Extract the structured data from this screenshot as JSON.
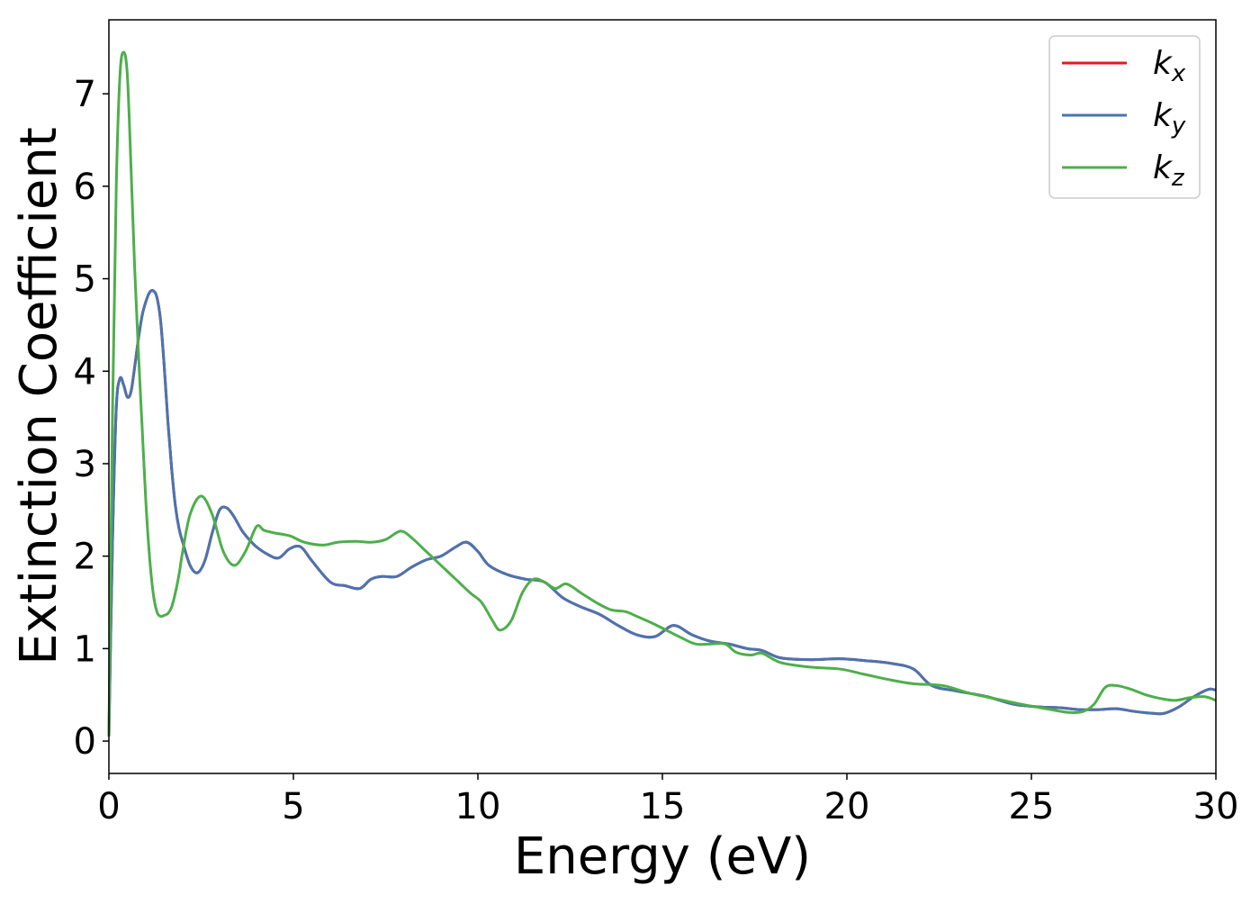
{
  "chart_data": {
    "type": "line",
    "title": "",
    "xlabel": "Energy (eV)",
    "ylabel": "Extinction Coefficient",
    "xlim": [
      0,
      30
    ],
    "ylim": [
      -0.35,
      7.8
    ],
    "xticks": [
      0,
      5,
      10,
      15,
      20,
      25,
      30
    ],
    "yticks": [
      0,
      1,
      2,
      3,
      4,
      5,
      6,
      7
    ],
    "xtick_labels": [
      "0",
      "5",
      "10",
      "15",
      "20",
      "25",
      "30"
    ],
    "ytick_labels": [
      "0",
      "1",
      "2",
      "3",
      "4",
      "5",
      "6",
      "7"
    ],
    "grid": false,
    "legend_position": "top-right",
    "series": [
      {
        "name": "k_x",
        "label_base": "k",
        "label_sub": "x",
        "color": "#e41a1c",
        "x": [
          0,
          0.1,
          0.2,
          0.3,
          0.4,
          0.5,
          0.6,
          0.7,
          0.8,
          0.9,
          1.0,
          1.1,
          1.2,
          1.3,
          1.4,
          1.5,
          1.6,
          1.7,
          1.8,
          1.9,
          2.0,
          2.2,
          2.4,
          2.6,
          2.8,
          3.0,
          3.2,
          3.4,
          3.6,
          3.8,
          4.0,
          4.3,
          4.6,
          4.9,
          5.2,
          5.5,
          6.0,
          6.4,
          6.8,
          7.1,
          7.4,
          7.8,
          8.2,
          8.6,
          9.0,
          9.4,
          9.7,
          10.0,
          10.3,
          10.8,
          11.3,
          11.8,
          12.3,
          12.8,
          13.3,
          13.8,
          14.3,
          14.8,
          15.3,
          15.8,
          16.3,
          16.8,
          17.3,
          17.7,
          18.2,
          19.0,
          19.8,
          20.5,
          21.2,
          21.8,
          22.3,
          23.0,
          23.8,
          24.5,
          25.2,
          25.8,
          26.3,
          26.8,
          27.3,
          27.8,
          28.3,
          28.6,
          29.0,
          29.4,
          29.8,
          30.0
        ],
        "y": [
          0.05,
          2.2,
          3.6,
          3.92,
          3.85,
          3.72,
          3.78,
          4.05,
          4.35,
          4.6,
          4.75,
          4.85,
          4.87,
          4.8,
          4.55,
          4.05,
          3.45,
          2.95,
          2.55,
          2.3,
          2.15,
          1.9,
          1.82,
          1.95,
          2.25,
          2.5,
          2.52,
          2.42,
          2.28,
          2.18,
          2.1,
          2.02,
          1.98,
          2.08,
          2.1,
          1.95,
          1.72,
          1.68,
          1.65,
          1.75,
          1.78,
          1.78,
          1.88,
          1.96,
          2.0,
          2.1,
          2.15,
          2.05,
          1.9,
          1.8,
          1.75,
          1.72,
          1.55,
          1.45,
          1.37,
          1.25,
          1.15,
          1.13,
          1.25,
          1.15,
          1.08,
          1.05,
          1.0,
          0.98,
          0.9,
          0.88,
          0.89,
          0.87,
          0.84,
          0.78,
          0.6,
          0.54,
          0.48,
          0.4,
          0.37,
          0.36,
          0.34,
          0.34,
          0.35,
          0.32,
          0.3,
          0.3,
          0.37,
          0.48,
          0.56,
          0.55
        ]
      },
      {
        "name": "k_y",
        "label_base": "k",
        "label_sub": "y",
        "color": "#4a74b0",
        "x": [
          0,
          0.1,
          0.2,
          0.3,
          0.4,
          0.5,
          0.6,
          0.7,
          0.8,
          0.9,
          1.0,
          1.1,
          1.2,
          1.3,
          1.4,
          1.5,
          1.6,
          1.7,
          1.8,
          1.9,
          2.0,
          2.2,
          2.4,
          2.6,
          2.8,
          3.0,
          3.2,
          3.4,
          3.6,
          3.8,
          4.0,
          4.3,
          4.6,
          4.9,
          5.2,
          5.5,
          6.0,
          6.4,
          6.8,
          7.1,
          7.4,
          7.8,
          8.2,
          8.6,
          9.0,
          9.4,
          9.7,
          10.0,
          10.3,
          10.8,
          11.3,
          11.8,
          12.3,
          12.8,
          13.3,
          13.8,
          14.3,
          14.8,
          15.3,
          15.8,
          16.3,
          16.8,
          17.3,
          17.7,
          18.2,
          19.0,
          19.8,
          20.5,
          21.2,
          21.8,
          22.3,
          23.0,
          23.8,
          24.5,
          25.2,
          25.8,
          26.3,
          26.8,
          27.3,
          27.8,
          28.3,
          28.6,
          29.0,
          29.4,
          29.8,
          30.0
        ],
        "y": [
          0.05,
          2.2,
          3.6,
          3.92,
          3.85,
          3.72,
          3.78,
          4.05,
          4.35,
          4.6,
          4.75,
          4.85,
          4.87,
          4.8,
          4.55,
          4.05,
          3.45,
          2.95,
          2.55,
          2.3,
          2.15,
          1.9,
          1.82,
          1.95,
          2.25,
          2.5,
          2.52,
          2.42,
          2.28,
          2.18,
          2.1,
          2.02,
          1.98,
          2.08,
          2.1,
          1.95,
          1.72,
          1.68,
          1.65,
          1.75,
          1.78,
          1.78,
          1.88,
          1.96,
          2.0,
          2.1,
          2.15,
          2.05,
          1.9,
          1.8,
          1.75,
          1.72,
          1.55,
          1.45,
          1.37,
          1.25,
          1.15,
          1.13,
          1.25,
          1.15,
          1.08,
          1.05,
          1.0,
          0.98,
          0.9,
          0.88,
          0.89,
          0.87,
          0.84,
          0.78,
          0.6,
          0.54,
          0.48,
          0.4,
          0.37,
          0.36,
          0.34,
          0.34,
          0.35,
          0.32,
          0.3,
          0.3,
          0.37,
          0.48,
          0.56,
          0.55
        ]
      },
      {
        "name": "k_z",
        "label_base": "k",
        "label_sub": "z",
        "color": "#4daf4a",
        "x": [
          0,
          0.1,
          0.2,
          0.3,
          0.4,
          0.5,
          0.6,
          0.7,
          0.8,
          0.9,
          1.0,
          1.1,
          1.2,
          1.3,
          1.4,
          1.5,
          1.6,
          1.7,
          1.8,
          1.9,
          2.0,
          2.2,
          2.5,
          2.8,
          3.1,
          3.4,
          3.7,
          4.0,
          4.2,
          4.5,
          4.9,
          5.3,
          5.8,
          6.2,
          6.7,
          7.1,
          7.5,
          7.9,
          8.2,
          8.6,
          9.0,
          9.4,
          9.8,
          10.1,
          10.4,
          10.6,
          10.9,
          11.2,
          11.5,
          11.8,
          12.1,
          12.4,
          12.8,
          13.2,
          13.6,
          14.0,
          14.3,
          14.7,
          15.1,
          15.5,
          15.9,
          16.3,
          16.7,
          17.0,
          17.4,
          17.7,
          18.2,
          19.0,
          19.8,
          20.5,
          21.2,
          21.8,
          22.6,
          23.3,
          24.0,
          24.7,
          25.4,
          26.0,
          26.4,
          26.7,
          27.0,
          27.3,
          27.7,
          28.1,
          28.5,
          28.9,
          29.3,
          29.7,
          30.0
        ],
        "y": [
          0.05,
          3.6,
          6.0,
          7.2,
          7.45,
          7.2,
          6.2,
          5.1,
          4.2,
          3.4,
          2.6,
          2.0,
          1.6,
          1.4,
          1.35,
          1.36,
          1.38,
          1.45,
          1.6,
          1.8,
          2.05,
          2.45,
          2.65,
          2.45,
          2.05,
          1.9,
          2.05,
          2.32,
          2.28,
          2.25,
          2.22,
          2.15,
          2.12,
          2.15,
          2.16,
          2.15,
          2.18,
          2.27,
          2.2,
          2.05,
          1.9,
          1.75,
          1.6,
          1.5,
          1.3,
          1.2,
          1.3,
          1.6,
          1.75,
          1.72,
          1.65,
          1.7,
          1.6,
          1.5,
          1.42,
          1.4,
          1.35,
          1.28,
          1.2,
          1.12,
          1.05,
          1.05,
          1.05,
          0.96,
          0.93,
          0.95,
          0.85,
          0.8,
          0.78,
          0.72,
          0.66,
          0.62,
          0.6,
          0.52,
          0.46,
          0.4,
          0.35,
          0.31,
          0.32,
          0.4,
          0.58,
          0.6,
          0.56,
          0.5,
          0.46,
          0.44,
          0.47,
          0.48,
          0.44
        ]
      }
    ]
  }
}
